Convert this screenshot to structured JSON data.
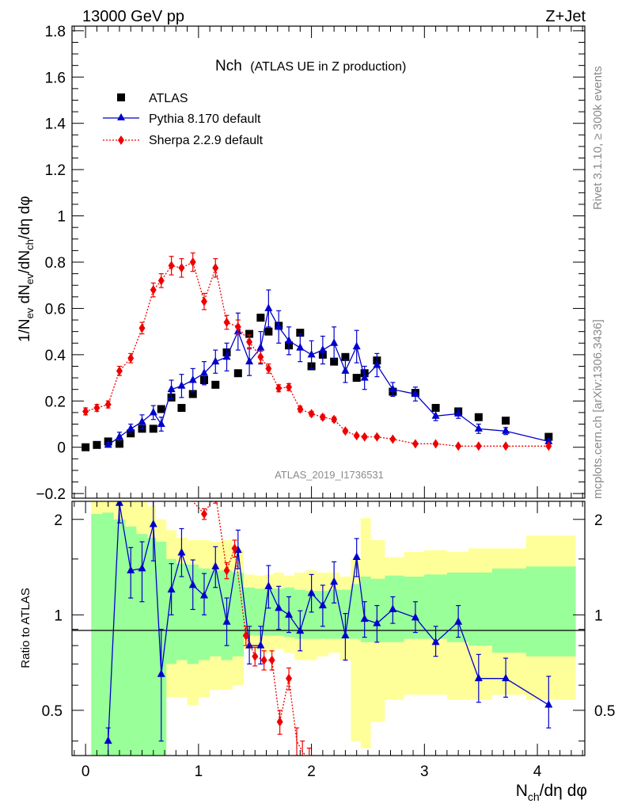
{
  "header": {
    "energy_label": "13000 GeV pp",
    "process_label": "Z+Jet"
  },
  "side_labels": {
    "rivet": "Rivet 3.1.10, ≥ 300k events",
    "mcplots": "mcplots.cern.ch [arXiv:1306.3436]"
  },
  "analysis_tag": "ATLAS_2019_I1736531",
  "chart_data": [
    {
      "type": "scatter",
      "panel": "main",
      "title": "Nch",
      "subtitle": "(ATLAS UE in Z production)",
      "ylabel": "1/N_ev dN_ev/dN_ch/dη dφ",
      "xlabel": "N_ch/dη dφ",
      "xlim": [
        -0.12,
        4.42
      ],
      "ylim": [
        -0.22,
        1.82
      ],
      "y_ticks": [
        -0.2,
        0,
        0.2,
        0.4,
        0.6,
        0.8,
        1,
        1.2,
        1.4,
        1.6,
        1.8
      ],
      "y_tick_labels": [
        "−0.2",
        "0",
        "0.2",
        "0.4",
        "0.6",
        "0.8",
        "1",
        "1.2",
        "1.4",
        "1.6",
        "1.8"
      ],
      "legend": {
        "placement": "top-left",
        "entries": [
          "ATLAS",
          "Pythia 8.170 default",
          "Sherpa 2.2.9 default"
        ]
      },
      "series": [
        {
          "name": "ATLAS",
          "color": "#000000",
          "marker": "square",
          "x": [
            0.0,
            0.1,
            0.2,
            0.3,
            0.4,
            0.5,
            0.6,
            0.67,
            0.76,
            0.85,
            0.95,
            1.05,
            1.15,
            1.25,
            1.35,
            1.45,
            1.55,
            1.62,
            1.71,
            1.8,
            1.9,
            2.0,
            2.1,
            2.2,
            2.3,
            2.4,
            2.47,
            2.58,
            2.72,
            2.92,
            3.1,
            3.3,
            3.48,
            3.72,
            4.1
          ],
          "y": [
            0.0,
            0.01,
            0.025,
            0.015,
            0.06,
            0.08,
            0.08,
            0.165,
            0.215,
            0.17,
            0.23,
            0.29,
            0.27,
            0.41,
            0.32,
            0.49,
            0.56,
            0.5,
            0.525,
            0.44,
            0.495,
            0.35,
            0.4,
            0.37,
            0.39,
            0.3,
            0.32,
            0.375,
            0.24,
            0.235,
            0.17,
            0.155,
            0.13,
            0.115,
            0.045
          ]
        },
        {
          "name": "Pythia 8.170 default",
          "color": "#0000cc",
          "marker": "triangle",
          "x": [
            0.2,
            0.3,
            0.4,
            0.5,
            0.6,
            0.67,
            0.76,
            0.85,
            0.95,
            1.05,
            1.15,
            1.25,
            1.35,
            1.45,
            1.55,
            1.62,
            1.71,
            1.8,
            1.9,
            2.0,
            2.1,
            2.2,
            2.3,
            2.4,
            2.47,
            2.58,
            2.72,
            2.92,
            3.1,
            3.3,
            3.48,
            3.72,
            4.1
          ],
          "y": [
            0.01,
            0.045,
            0.08,
            0.11,
            0.15,
            0.1,
            0.25,
            0.265,
            0.29,
            0.32,
            0.37,
            0.39,
            0.5,
            0.37,
            0.43,
            0.6,
            0.52,
            0.46,
            0.43,
            0.4,
            0.42,
            0.45,
            0.33,
            0.435,
            0.3,
            0.355,
            0.25,
            0.23,
            0.135,
            0.145,
            0.08,
            0.07,
            0.025
          ],
          "err": [
            0.01,
            0.02,
            0.02,
            0.03,
            0.03,
            0.03,
            0.04,
            0.05,
            0.05,
            0.05,
            0.05,
            0.06,
            0.08,
            0.06,
            0.07,
            0.08,
            0.07,
            0.06,
            0.06,
            0.06,
            0.06,
            0.07,
            0.05,
            0.07,
            0.05,
            0.05,
            0.03,
            0.03,
            0.02,
            0.02,
            0.02,
            0.015,
            0.01
          ]
        },
        {
          "name": "Sherpa 2.2.9 default",
          "color": "#ee0000",
          "marker": "diamond",
          "x": [
            0.0,
            0.1,
            0.2,
            0.3,
            0.4,
            0.5,
            0.6,
            0.67,
            0.76,
            0.85,
            0.95,
            1.05,
            1.15,
            1.25,
            1.35,
            1.45,
            1.55,
            1.62,
            1.71,
            1.8,
            1.9,
            2.0,
            2.1,
            2.2,
            2.3,
            2.4,
            2.47,
            2.58,
            2.72,
            2.92,
            3.1,
            3.3,
            3.48,
            3.72,
            4.1
          ],
          "y": [
            0.155,
            0.17,
            0.185,
            0.33,
            0.385,
            0.515,
            0.68,
            0.72,
            0.785,
            0.775,
            0.8,
            0.63,
            0.775,
            0.54,
            0.52,
            0.455,
            0.39,
            0.34,
            0.255,
            0.26,
            0.165,
            0.145,
            0.13,
            0.12,
            0.07,
            0.05,
            0.045,
            0.045,
            0.035,
            0.015,
            0.015,
            0.005,
            0.005,
            0.005,
            0.005
          ],
          "err": [
            0.015,
            0.015,
            0.015,
            0.02,
            0.02,
            0.025,
            0.03,
            0.03,
            0.04,
            0.04,
            0.04,
            0.035,
            0.04,
            0.03,
            0.03,
            0.03,
            0.025,
            0.02,
            0.015,
            0.015,
            0.012,
            0.01,
            0.01,
            0.01,
            0.008,
            0.006,
            0.006,
            0.006,
            0.005,
            0.004,
            0.004,
            0.003,
            0.003,
            0.003,
            0.003
          ]
        }
      ]
    },
    {
      "type": "line",
      "panel": "ratio",
      "ylabel": "Ratio to ATLAS",
      "xlabel": "N_ch/dη dφ",
      "xlim": [
        -0.12,
        4.42
      ],
      "ylim": [
        0.36,
        2.28
      ],
      "y_scale": "log",
      "x_ticks": [
        0,
        1,
        2,
        3,
        4
      ],
      "x_tick_labels": [
        "0",
        "1",
        "2",
        "3",
        "4"
      ],
      "y_ticks": [
        0.5,
        1,
        2
      ],
      "y_tick_labels": [
        "0.5",
        "1",
        "2"
      ],
      "reference_line": 1,
      "uncertainty_bands": {
        "bin_edges": [
          0.05,
          0.15,
          0.25,
          0.35,
          0.45,
          0.55,
          0.625,
          0.715,
          0.805,
          0.9,
          1.0,
          1.1,
          1.2,
          1.3,
          1.4,
          1.5,
          1.585,
          1.665,
          1.755,
          1.85,
          1.95,
          2.05,
          2.15,
          2.25,
          2.35,
          2.435,
          2.525,
          2.65,
          2.82,
          3.0,
          3.2,
          3.39,
          3.6,
          3.9,
          4.34
        ],
        "inner": {
          "color": "#99ff99",
          "lo": [
            0.3,
            0.3,
            0.3,
            0.3,
            0.3,
            0.3,
            0.3,
            0.7,
            0.72,
            0.7,
            0.72,
            0.74,
            0.72,
            0.74,
            0.86,
            0.86,
            0.86,
            0.86,
            0.85,
            0.84,
            0.84,
            0.84,
            0.84,
            0.84,
            0.84,
            0.82,
            0.82,
            0.82,
            0.84,
            0.84,
            0.82,
            0.8,
            0.76,
            0.74
          ],
          "hi": [
            2.08,
            2.1,
            2.0,
            1.9,
            1.8,
            1.75,
            1.7,
            1.5,
            1.45,
            1.44,
            1.4,
            1.38,
            1.38,
            1.36,
            1.22,
            1.21,
            1.21,
            1.21,
            1.22,
            1.2,
            1.19,
            1.19,
            1.2,
            1.2,
            1.25,
            1.32,
            1.3,
            1.33,
            1.32,
            1.34,
            1.36,
            1.36,
            1.4,
            1.42
          ]
        },
        "outer": {
          "color": "#ffff99",
          "lo": [
            0.3,
            0.3,
            0.3,
            0.3,
            0.3,
            0.3,
            0.3,
            0.55,
            0.55,
            0.52,
            0.55,
            0.58,
            0.58,
            0.6,
            0.78,
            0.77,
            0.76,
            0.78,
            0.76,
            0.72,
            0.72,
            0.74,
            0.76,
            0.72,
            0.4,
            0.38,
            0.46,
            0.54,
            0.56,
            0.56,
            0.54,
            0.54,
            0.56,
            0.54
          ],
          "hi": [
            2.3,
            2.3,
            2.3,
            2.3,
            2.3,
            2.2,
            2.0,
            1.85,
            1.75,
            1.72,
            1.72,
            1.7,
            1.72,
            1.6,
            1.34,
            1.33,
            1.34,
            1.36,
            1.33,
            1.36,
            1.38,
            1.36,
            1.36,
            1.32,
            1.5,
            2.02,
            1.72,
            1.52,
            1.58,
            1.6,
            1.58,
            1.62,
            1.62,
            1.78
          ]
        }
      },
      "series": [
        {
          "name": "Pythia 8.170 default",
          "color": "#0000cc",
          "marker": "triangle",
          "x": [
            0.2,
            0.3,
            0.4,
            0.5,
            0.6,
            0.67,
            0.76,
            0.85,
            0.95,
            1.05,
            1.15,
            1.25,
            1.35,
            1.45,
            1.55,
            1.62,
            1.71,
            1.8,
            1.9,
            2.0,
            2.1,
            2.2,
            2.3,
            2.4,
            2.47,
            2.58,
            2.72,
            2.92,
            3.1,
            3.3,
            3.48,
            3.72,
            4.1
          ],
          "y": [
            0.4,
            2.25,
            1.38,
            1.4,
            1.93,
            0.65,
            1.2,
            1.57,
            1.24,
            1.15,
            1.42,
            0.95,
            1.6,
            0.8,
            0.8,
            1.23,
            1.05,
            1.0,
            0.89,
            1.17,
            1.07,
            1.27,
            0.86,
            1.52,
            0.97,
            0.94,
            1.04,
            0.98,
            0.82,
            0.95,
            0.63,
            0.63,
            0.52
          ],
          "err_lo": [
            0.04,
            0.3,
            0.25,
            0.3,
            0.45,
            0.25,
            0.2,
            0.25,
            0.2,
            0.15,
            0.2,
            0.15,
            0.2,
            0.1,
            0.1,
            0.18,
            0.15,
            0.12,
            0.12,
            0.15,
            0.15,
            0.18,
            0.14,
            0.2,
            0.12,
            0.12,
            0.1,
            0.1,
            0.08,
            0.1,
            0.1,
            0.08,
            0.08
          ],
          "err_hi": [
            0.04,
            0.3,
            0.25,
            0.3,
            0.45,
            0.25,
            0.25,
            0.3,
            0.25,
            0.2,
            0.22,
            0.18,
            0.25,
            0.12,
            0.12,
            0.2,
            0.18,
            0.14,
            0.14,
            0.17,
            0.17,
            0.2,
            0.15,
            0.22,
            0.13,
            0.13,
            0.1,
            0.12,
            0.1,
            0.12,
            0.12,
            0.1,
            0.12
          ]
        },
        {
          "name": "Sherpa 2.2.9 default",
          "color": "#ee0000",
          "marker": "diamond",
          "x": [
            0.85,
            1.05,
            1.15,
            1.25,
            1.32,
            1.42,
            1.5,
            1.58,
            1.65,
            1.72,
            1.8,
            1.87,
            1.92,
            1.98
          ],
          "y": [
            2.5,
            2.08,
            2.4,
            1.38,
            1.62,
            0.86,
            0.74,
            0.72,
            0.72,
            0.46,
            0.63,
            0.4,
            0.37,
            0.35
          ],
          "err": [
            0.2,
            0.08,
            0.15,
            0.08,
            0.1,
            0.06,
            0.05,
            0.05,
            0.05,
            0.04,
            0.05,
            0.04,
            0.03,
            0.03
          ],
          "markers_shown_at_x": [
            1.05,
            1.25,
            1.32,
            1.42,
            1.5,
            1.58,
            1.65,
            1.72,
            1.8,
            1.98
          ]
        }
      ]
    }
  ]
}
